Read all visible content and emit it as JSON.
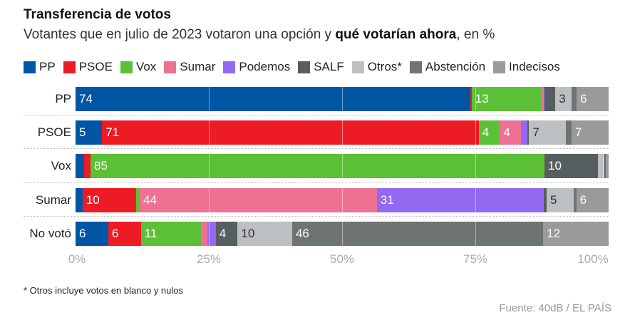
{
  "title": "Transferencia de votos",
  "subtitle_pre": "Votantes que en julio de 2023 votaron una opción y ",
  "subtitle_bold": "qué votarían ahora",
  "subtitle_post": ", en %",
  "note": "* Otros incluye votos en blanco y nulos",
  "source": "Fuente: 40dB / EL PAÍS",
  "chart_data": {
    "type": "bar",
    "orientation": "horizontal-stacked",
    "xlim": [
      0,
      100
    ],
    "grid": true,
    "legend_placement": "top",
    "ticks": [
      "0%",
      "25%",
      "50%",
      "75%",
      "100%"
    ],
    "series": [
      {
        "name": "PP",
        "color": "#0055a5"
      },
      {
        "name": "PSOE",
        "color": "#ed1c24"
      },
      {
        "name": "Vox",
        "color": "#5bc035"
      },
      {
        "name": "Sumar",
        "color": "#ee7193"
      },
      {
        "name": "Podemos",
        "color": "#9369f2"
      },
      {
        "name": "SALF",
        "color": "#575e60"
      },
      {
        "name": "Otros*",
        "color": "#bcc0c3"
      },
      {
        "name": "Abstención",
        "color": "#6d7472"
      },
      {
        "name": "Indecisos",
        "color": "#9a9a9a"
      }
    ],
    "categories": [
      "PP",
      "PSOE",
      "Vox",
      "Sumar",
      "No votó"
    ],
    "values": [
      [
        74,
        0.3,
        13,
        0.5,
        0.2,
        2,
        3,
        1,
        6
      ],
      [
        5,
        71,
        4,
        4,
        1.2,
        0.3,
        7,
        1,
        7
      ],
      [
        1.6,
        1.2,
        85,
        0,
        0,
        10,
        1,
        0.5,
        0.5
      ],
      [
        1.3,
        10,
        0.6,
        44,
        31,
        0.5,
        5,
        0.5,
        6
      ],
      [
        6,
        6,
        11,
        1.2,
        1.5,
        4,
        10,
        46,
        12
      ]
    ],
    "labels": [
      [
        "74",
        "",
        "13",
        "",
        "",
        "",
        "3",
        "",
        "6"
      ],
      [
        "5",
        "71",
        "4",
        "4",
        "",
        "",
        "7",
        "",
        "7"
      ],
      [
        "",
        "",
        "85",
        "",
        "",
        "10",
        "",
        "",
        ""
      ],
      [
        "",
        "10",
        "",
        "44",
        "31",
        "",
        "5",
        "",
        "6"
      ],
      [
        "6",
        "6",
        "11",
        "",
        "",
        "4",
        "10",
        "46",
        "12"
      ]
    ]
  }
}
